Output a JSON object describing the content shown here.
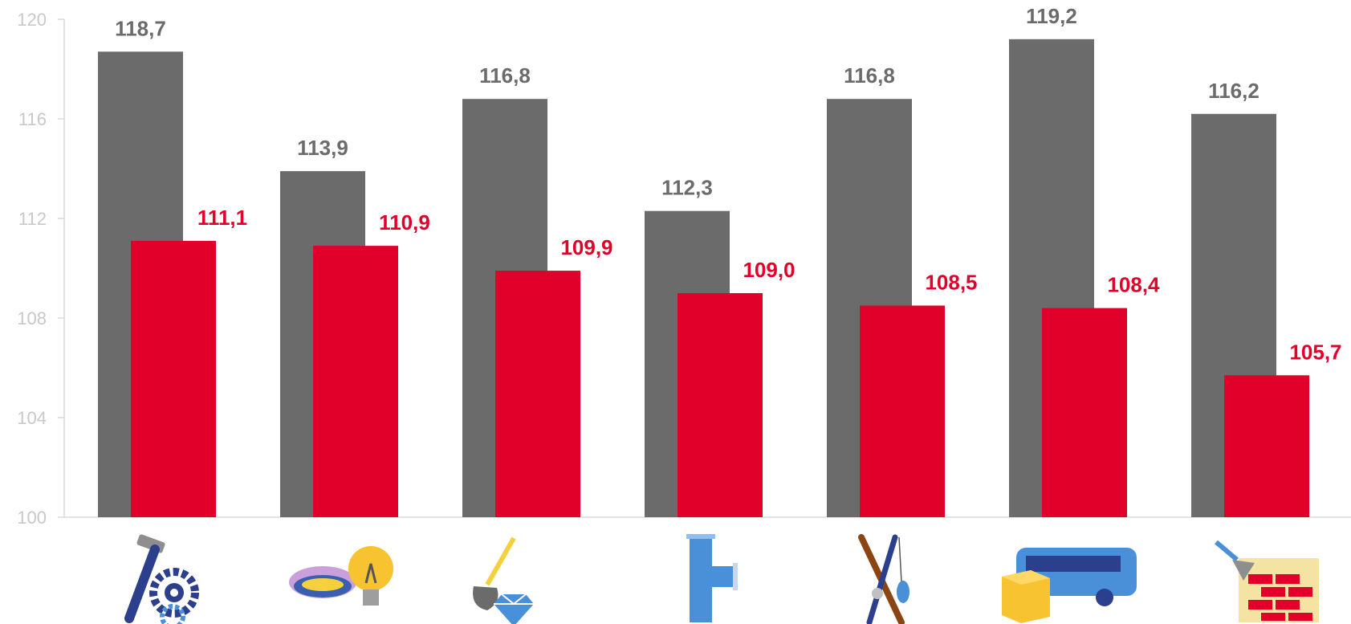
{
  "chart_data": {
    "type": "bar",
    "categories": [
      "manufacturing-icon",
      "gas-electricity-icon",
      "mining-icon",
      "water-supply-icon",
      "agriculture-hunting-fishing-icon",
      "transport-storage-icon",
      "construction-icon"
    ],
    "series": [
      {
        "values": [
          118.7,
          113.9,
          116.8,
          112.3,
          116.8,
          119.2,
          116.2
        ],
        "color": "#6b6b6b"
      },
      {
        "values": [
          111.1,
          110.9,
          109.9,
          109.0,
          108.5,
          108.4,
          105.7
        ],
        "color": "#e0002a"
      }
    ],
    "value_labels": [
      [
        "118,7",
        "113,9",
        "116,8",
        "112,3",
        "116,8",
        "119,2",
        "116,2"
      ],
      [
        "111,1",
        "110,9",
        "109,9",
        "109,0",
        "108,5",
        "108,4",
        "105,7"
      ]
    ],
    "ylim": [
      100,
      120
    ],
    "yticks": [
      "100",
      "104",
      "108",
      "112",
      "116",
      "120"
    ],
    "grid": false,
    "legend": "none",
    "xlabel": "",
    "ylabel": ""
  }
}
